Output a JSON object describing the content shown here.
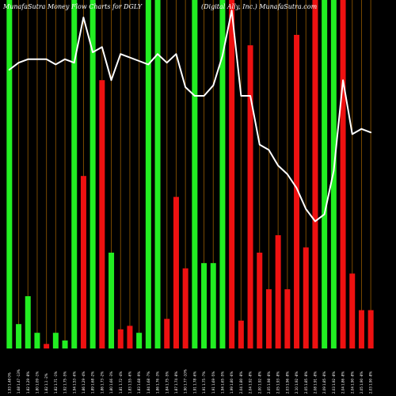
{
  "chart_data": {
    "type": "bar",
    "title": "MunafaSutra  Money  Flow  Charts for DGLY",
    "subtitle": "(Digital  Ally,  Inc.) MunafaSutra.com",
    "xlabel": "",
    "ylabel": "",
    "grid": true,
    "colors": {
      "background": "#000000",
      "up": "#22ee22",
      "down": "#ee1111",
      "line": "#ffffff",
      "grid": "#7a4a00",
      "text": "#ffffff"
    },
    "bars_ylim": [
      0,
      100
    ],
    "line_ylim": [
      0,
      100
    ],
    "bars": [
      {
        "label": "1.93 1.48 0%",
        "value": 100,
        "dir": "up"
      },
      {
        "label": "1.68 1.47 -13%",
        "value": 7,
        "dir": "up"
      },
      {
        "label": "1.82 1.29 -8%",
        "value": 15,
        "dir": "up"
      },
      {
        "label": "1.80 1.09 -1%",
        "value": 4.5,
        "dir": "up"
      },
      {
        "label": "1.82 1.1 -2%",
        "value": 1.3,
        "dir": "down"
      },
      {
        "label": "1.82 1.71 -1%",
        "value": 4.5,
        "dir": "up"
      },
      {
        "label": "1.92 1.75 -5%",
        "value": 2.3,
        "dir": "up"
      },
      {
        "label": "1.94 1.53 -6%",
        "value": 100,
        "dir": "up"
      },
      {
        "label": "1.86 1.29 -4%",
        "value": 49.5,
        "dir": "down"
      },
      {
        "label": "1.89 1.68 -2%",
        "value": 100,
        "dir": "up"
      },
      {
        "label": "1.86 1.73 -2%",
        "value": 77,
        "dir": "down"
      },
      {
        "label": "1.80 1.66 -3%",
        "value": 27.5,
        "dir": "up"
      },
      {
        "label": "1.81 1.72 -4%",
        "value": 5.5,
        "dir": "down"
      },
      {
        "label": "1.83 1.55 -6%",
        "value": 6.5,
        "dir": "down"
      },
      {
        "label": "1.83 1.68 -9%",
        "value": 4.5,
        "dir": "up"
      },
      {
        "label": "1.84 1.68 -7%",
        "value": 100,
        "dir": "up"
      },
      {
        "label": "1.86 1.76 -3%",
        "value": 100,
        "dir": "up"
      },
      {
        "label": "1.84 1.75 -5%",
        "value": 8.5,
        "dir": "down"
      },
      {
        "label": "1.87 1.74 -8%",
        "value": 43.5,
        "dir": "down"
      },
      {
        "label": "1.90 1.77 -10%",
        "value": 23,
        "dir": "down"
      },
      {
        "label": "1.91 1.78 -6%",
        "value": 100,
        "dir": "up"
      },
      {
        "label": "1.91 1.75 -7%",
        "value": 24.5,
        "dir": "up"
      },
      {
        "label": "1.91 1.69 -5%",
        "value": 24.5,
        "dir": "up"
      },
      {
        "label": "1.94 1.65 -5%",
        "value": 100,
        "dir": "up"
      },
      {
        "label": "1.99 1.80 -6%",
        "value": 100,
        "dir": "down"
      },
      {
        "label": "2.04 1.80 -8%",
        "value": 8,
        "dir": "down"
      },
      {
        "label": "2.04 1.92 -8%",
        "value": 87,
        "dir": "down"
      },
      {
        "label": "2.00 1.92 -8%",
        "value": 27.5,
        "dir": "down"
      },
      {
        "label": "2.05 1.98 -8%",
        "value": 17,
        "dir": "down"
      },
      {
        "label": "2.05 1.93 -8%",
        "value": 32.5,
        "dir": "down"
      },
      {
        "label": "2.03 1.96 -8%",
        "value": 17,
        "dir": "down"
      },
      {
        "label": "2.10 1.92 -8%",
        "value": 90,
        "dir": "down"
      },
      {
        "label": "2.05 1.85 -8%",
        "value": 29,
        "dir": "down"
      },
      {
        "label": "2.08 1.91 -8%",
        "value": 100,
        "dir": "down"
      },
      {
        "label": "2.09 1.85 -8%",
        "value": 100,
        "dir": "up"
      },
      {
        "label": "2.03 1.92 -8%",
        "value": 100,
        "dir": "up"
      },
      {
        "label": "2.04 1.86 -8%",
        "value": 100,
        "dir": "down"
      },
      {
        "label": "2.04 1.90 -8%",
        "value": 21.5,
        "dir": "down"
      },
      {
        "label": "2.05 1.90 -8%",
        "value": 11,
        "dir": "down"
      },
      {
        "label": "2.03 1.90 -8%",
        "value": 11,
        "dir": "down"
      }
    ],
    "line": [
      {
        "x": 0,
        "y": 80
      },
      {
        "x": 1,
        "y": 82
      },
      {
        "x": 2,
        "y": 83
      },
      {
        "x": 3,
        "y": 83
      },
      {
        "x": 4,
        "y": 83
      },
      {
        "x": 5,
        "y": 81.5
      },
      {
        "x": 6,
        "y": 83
      },
      {
        "x": 7,
        "y": 82
      },
      {
        "x": 8,
        "y": 95
      },
      {
        "x": 9,
        "y": 85
      },
      {
        "x": 10,
        "y": 86.5
      },
      {
        "x": 11,
        "y": 77
      },
      {
        "x": 12,
        "y": 84.5
      },
      {
        "x": 14,
        "y": 82.5
      },
      {
        "x": 15,
        "y": 81.5
      },
      {
        "x": 16,
        "y": 84.5
      },
      {
        "x": 17,
        "y": 82
      },
      {
        "x": 18,
        "y": 84.5
      },
      {
        "x": 19,
        "y": 75
      },
      {
        "x": 20,
        "y": 72.5
      },
      {
        "x": 21,
        "y": 72.5
      },
      {
        "x": 22,
        "y": 75.5
      },
      {
        "x": 23,
        "y": 84
      },
      {
        "x": 24,
        "y": 97
      },
      {
        "x": 25,
        "y": 72.5
      },
      {
        "x": 26,
        "y": 72.5
      },
      {
        "x": 27,
        "y": 58.5
      },
      {
        "x": 28,
        "y": 57
      },
      {
        "x": 29,
        "y": 52.5
      },
      {
        "x": 30,
        "y": 50
      },
      {
        "x": 31,
        "y": 46
      },
      {
        "x": 32,
        "y": 40
      },
      {
        "x": 33,
        "y": 36.5
      },
      {
        "x": 34,
        "y": 38.5
      },
      {
        "x": 35,
        "y": 51
      },
      {
        "x": 36,
        "y": 77
      },
      {
        "x": 37,
        "y": 61.5
      },
      {
        "x": 38,
        "y": 63
      },
      {
        "x": 39,
        "y": 62
      }
    ]
  }
}
